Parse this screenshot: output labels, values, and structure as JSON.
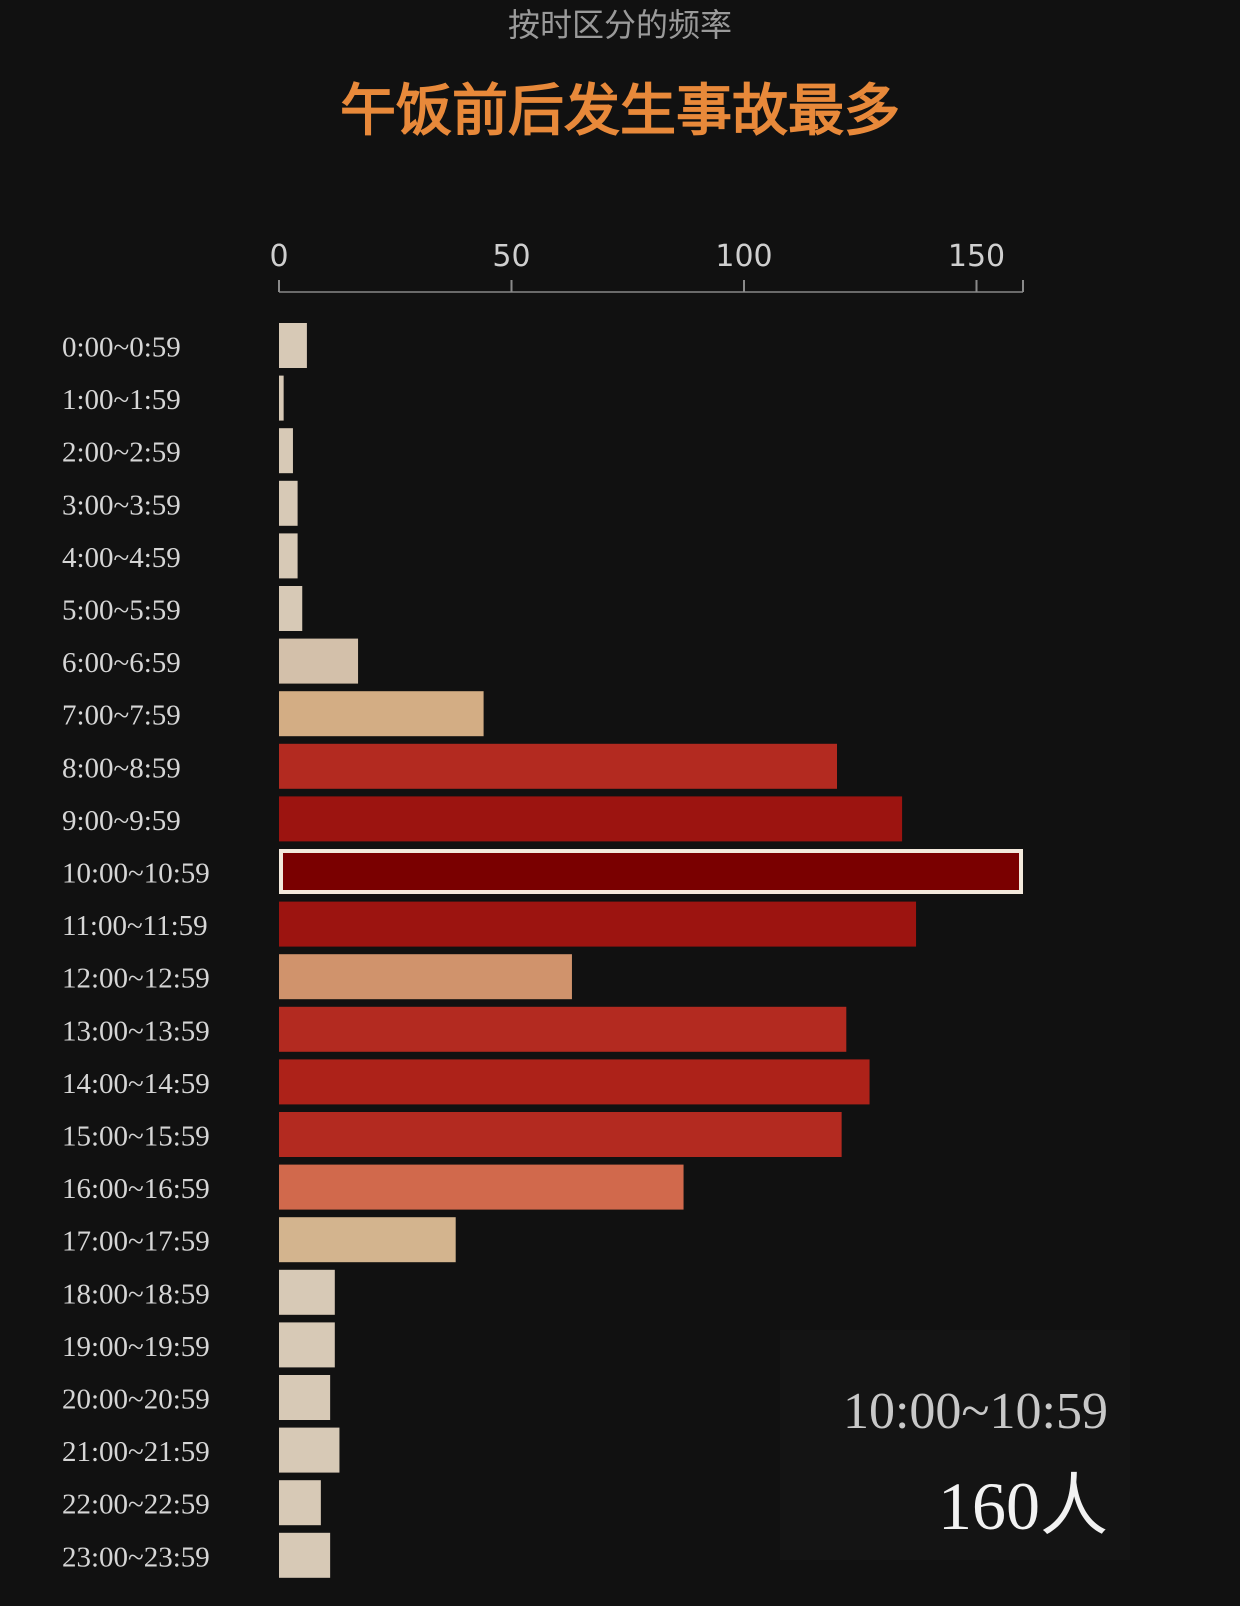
{
  "chart_data": {
    "type": "bar",
    "orientation": "horizontal",
    "subtitle": "按时区分的频率",
    "title": "午饭前后发生事故最多",
    "xlim": [
      0,
      160
    ],
    "xticks": [
      0,
      50,
      100,
      150
    ],
    "categories": [
      "0:00~0:59",
      "1:00~1:59",
      "2:00~2:59",
      "3:00~3:59",
      "4:00~4:59",
      "5:00~5:59",
      "6:00~6:59",
      "7:00~7:59",
      "8:00~8:59",
      "9:00~9:59",
      "10:00~10:59",
      "11:00~11:59",
      "12:00~12:59",
      "13:00~13:59",
      "14:00~14:59",
      "15:00~15:59",
      "16:00~16:59",
      "17:00~17:59",
      "18:00~18:59",
      "19:00~19:59",
      "20:00~20:59",
      "21:00~21:59",
      "22:00~22:59",
      "23:00~23:59"
    ],
    "values": [
      6,
      1,
      3,
      4,
      4,
      5,
      17,
      44,
      120,
      134,
      160,
      137,
      63,
      122,
      127,
      121,
      87,
      38,
      12,
      12,
      11,
      13,
      9,
      11
    ],
    "colors": [
      "#d7c9b6",
      "#d7c9b6",
      "#d7c9b6",
      "#d7c9b6",
      "#d7c9b6",
      "#d7c9b6",
      "#d3c0aa",
      "#d3ad84",
      "#b32a20",
      "#9c1410",
      "#7a0000",
      "#9c1410",
      "#d0936c",
      "#b32a20",
      "#ad2219",
      "#b32a20",
      "#d1694c",
      "#d3b48e",
      "#d7c9b6",
      "#d7c9b6",
      "#d7c9b6",
      "#d7c9b6",
      "#d7c9b6",
      "#d7c9b6"
    ],
    "highlight_index": 10,
    "highlight_outline": "#f3e9dc"
  },
  "tooltip": {
    "range": "10:00~10:59",
    "value": "160人"
  }
}
